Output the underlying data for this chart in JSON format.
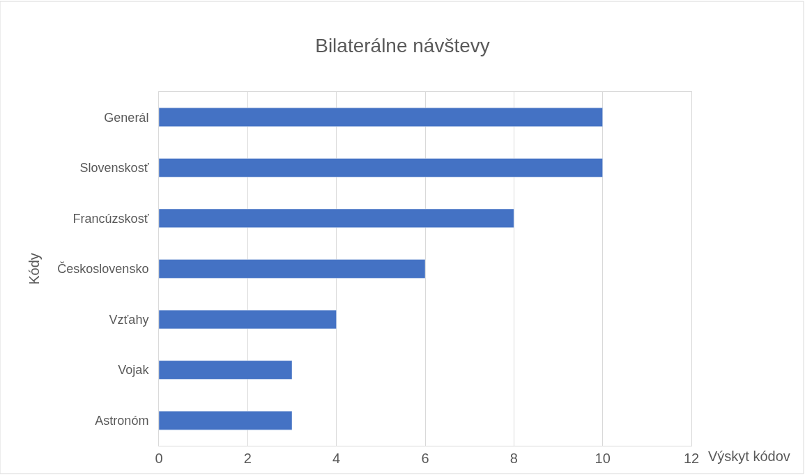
{
  "chart_data": {
    "type": "bar",
    "orientation": "horizontal",
    "title": "Bilaterálne návštevy",
    "xlabel": "Výskyt kódov",
    "ylabel": "Kódy",
    "categories": [
      "Generál",
      "Slovenskosť",
      "Francúzskosť",
      "Československo",
      "Vzťahy",
      "Vojak",
      "Astronóm"
    ],
    "values": [
      10,
      10,
      8,
      6,
      4,
      3,
      3
    ],
    "color": "#4472c4",
    "xlim": [
      0,
      12
    ],
    "xticks": [
      0,
      2,
      4,
      6,
      8,
      10,
      12
    ],
    "grid": "x"
  }
}
